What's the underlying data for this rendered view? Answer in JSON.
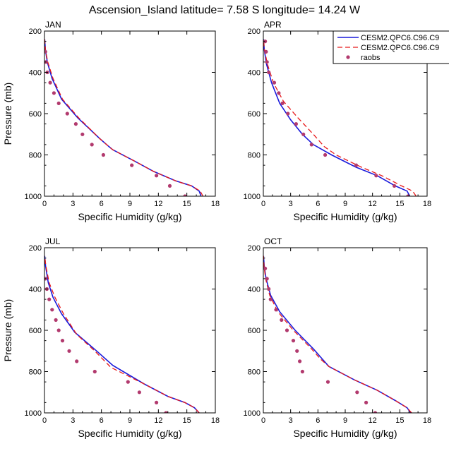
{
  "page": {
    "title": "Ascension_Island  latitude= 7.58 S longitude= 14.24 W"
  },
  "colors": {
    "model_solid": "#1a1adb",
    "model_dashed": "#e8191a",
    "raobs": "#b23a6e"
  },
  "legend": {
    "placement": "top-right of APR panel",
    "entries": [
      "CESM2.QPC6.C96.C9",
      "CESM2.QPC6.C96.C9",
      "raobs"
    ]
  },
  "chart_data": [
    {
      "type": "line",
      "panel_label": "JAN",
      "xlabel": "Specific Humidity (g/kg)",
      "ylabel": "Pressure (mb)",
      "xlim": [
        0,
        18
      ],
      "ylim": [
        1000,
        200
      ],
      "xticks": [
        "0",
        "3",
        "6",
        "9",
        "12",
        "15",
        "18"
      ],
      "yticks": [
        "200",
        "400",
        "600",
        "800",
        "1000"
      ],
      "series": [
        {
          "name": "CESM2.QPC6.C96.C9",
          "style": "solid",
          "x": [
            16.5,
            16.3,
            15.5,
            13.8,
            11.5,
            9.5,
            7.2,
            6.8,
            5.8,
            3.5,
            1.8,
            0.8,
            0.3,
            0.1,
            0.02
          ],
          "y": [
            1000,
            975,
            950,
            925,
            880,
            830,
            775,
            760,
            720,
            620,
            530,
            430,
            350,
            290,
            240
          ]
        },
        {
          "name": "CESM2.QPC6.C96.C9",
          "style": "dashed",
          "x": [
            16.7,
            16.4,
            15.5,
            13.8,
            11.5,
            9.5,
            7.2,
            6.8,
            5.8,
            3.6,
            1.9,
            0.9,
            0.35,
            0.1,
            0.02
          ],
          "y": [
            1000,
            975,
            950,
            925,
            880,
            830,
            775,
            760,
            720,
            620,
            530,
            430,
            350,
            290,
            240
          ]
        },
        {
          "name": "raobs",
          "style": "points",
          "x": [
            14.8,
            13.2,
            11.8,
            9.2,
            6.2,
            5.0,
            4.0,
            3.3,
            2.4,
            1.5,
            1.0,
            0.6,
            0.3,
            0.15,
            0.1
          ],
          "y": [
            1000,
            950,
            900,
            850,
            800,
            750,
            700,
            650,
            600,
            550,
            500,
            450,
            400,
            350,
            300
          ]
        }
      ]
    },
    {
      "type": "line",
      "panel_label": "APR",
      "xlabel": "Specific Humidity (g/kg)",
      "ylabel": "",
      "xlim": [
        0,
        18
      ],
      "ylim": [
        1000,
        200
      ],
      "xticks": [
        "0",
        "3",
        "6",
        "9",
        "12",
        "15",
        "18"
      ],
      "yticks": [
        "200",
        "400",
        "600",
        "800",
        "1000"
      ],
      "series": [
        {
          "name": "CESM2.QPC6.C96.C9",
          "style": "solid",
          "x": [
            16.1,
            15.8,
            14.5,
            12.5,
            10.2,
            7.5,
            5.5,
            4.3,
            3.0,
            1.8,
            0.9,
            0.35,
            0.1,
            0.02
          ],
          "y": [
            1000,
            975,
            950,
            900,
            860,
            800,
            750,
            700,
            630,
            550,
            450,
            360,
            290,
            240
          ]
        },
        {
          "name": "CESM2.QPC6.C96.C9",
          "style": "dashed",
          "x": [
            16.8,
            16.4,
            15.2,
            13.0,
            10.8,
            8.0,
            6.7,
            5.5,
            3.8,
            2.2,
            1.1,
            0.45,
            0.12,
            0.02
          ],
          "y": [
            1000,
            975,
            950,
            900,
            860,
            800,
            760,
            700,
            620,
            540,
            450,
            360,
            290,
            240
          ]
        },
        {
          "name": "raobs",
          "style": "points",
          "x": [
            15.9,
            14.4,
            12.4,
            10.2,
            6.8,
            5.3,
            4.4,
            3.6,
            2.7,
            2.1,
            1.7,
            1.2,
            0.6,
            0.4,
            0.3,
            0.2
          ],
          "y": [
            1000,
            950,
            900,
            850,
            800,
            750,
            700,
            650,
            600,
            550,
            500,
            450,
            400,
            350,
            300,
            250
          ]
        }
      ]
    },
    {
      "type": "line",
      "panel_label": "JUL",
      "xlabel": "Specific Humidity (g/kg)",
      "ylabel": "Pressure (mb)",
      "xlim": [
        0,
        18
      ],
      "ylim": [
        1000,
        200
      ],
      "xticks": [
        "0",
        "3",
        "6",
        "9",
        "12",
        "15",
        "18"
      ],
      "yticks": [
        "200",
        "400",
        "600",
        "800",
        "1000"
      ],
      "series": [
        {
          "name": "CESM2.QPC6.C96.C9",
          "style": "solid",
          "x": [
            16.3,
            15.8,
            14.8,
            13.0,
            10.5,
            7.2,
            5.5,
            3.2,
            1.8,
            0.9,
            0.4,
            0.12,
            0.02
          ],
          "y": [
            1000,
            975,
            950,
            920,
            860,
            770,
            700,
            610,
            520,
            440,
            370,
            290,
            240
          ]
        },
        {
          "name": "CESM2.QPC6.C96.C9",
          "style": "dashed",
          "x": [
            16.3,
            15.8,
            14.8,
            13.0,
            10.5,
            7.0,
            5.3,
            3.4,
            2.0,
            1.1,
            0.5,
            0.15,
            0.02
          ],
          "y": [
            1000,
            975,
            950,
            920,
            860,
            780,
            700,
            620,
            520,
            440,
            370,
            290,
            240
          ]
        },
        {
          "name": "raobs",
          "style": "points",
          "x": [
            12.8,
            11.8,
            10.0,
            8.8,
            5.3,
            3.4,
            2.6,
            1.9,
            1.5,
            1.2,
            0.8,
            0.5,
            0.25,
            0.1
          ],
          "y": [
            1000,
            950,
            900,
            850,
            800,
            750,
            700,
            650,
            600,
            550,
            500,
            450,
            400,
            350
          ]
        }
      ]
    },
    {
      "type": "line",
      "panel_label": "OCT",
      "xlabel": "Specific Humidity (g/kg)",
      "ylabel": "",
      "xlim": [
        0,
        18
      ],
      "ylim": [
        1000,
        200
      ],
      "xticks": [
        "0",
        "3",
        "6",
        "9",
        "12",
        "15",
        "18"
      ],
      "yticks": [
        "200",
        "400",
        "600",
        "800",
        "1000"
      ],
      "series": [
        {
          "name": "CESM2.QPC6.C96.C9",
          "style": "solid",
          "x": [
            16.2,
            15.8,
            14.5,
            12.5,
            10.0,
            7.2,
            6.5,
            5.5,
            3.5,
            1.8,
            0.8,
            0.3,
            0.1,
            0.02
          ],
          "y": [
            1000,
            975,
            940,
            890,
            840,
            775,
            740,
            690,
            600,
            510,
            430,
            350,
            290,
            240
          ]
        },
        {
          "name": "CESM2.QPC6.C96.C9",
          "style": "dashed",
          "x": [
            16.3,
            15.8,
            14.5,
            12.5,
            10.0,
            7.2,
            6.3,
            5.3,
            3.3,
            1.6,
            0.7,
            0.25,
            0.08,
            0.02
          ],
          "y": [
            1000,
            975,
            940,
            890,
            840,
            775,
            740,
            690,
            600,
            510,
            430,
            350,
            290,
            240
          ]
        },
        {
          "name": "raobs",
          "style": "points",
          "x": [
            12.3,
            11.3,
            10.3,
            7.1,
            4.3,
            4.0,
            3.7,
            3.3,
            2.6,
            2.0,
            1.4,
            0.8,
            0.6,
            0.4,
            0.2
          ],
          "y": [
            1000,
            950,
            900,
            850,
            800,
            750,
            700,
            650,
            600,
            550,
            500,
            450,
            400,
            350,
            300
          ]
        }
      ]
    }
  ]
}
